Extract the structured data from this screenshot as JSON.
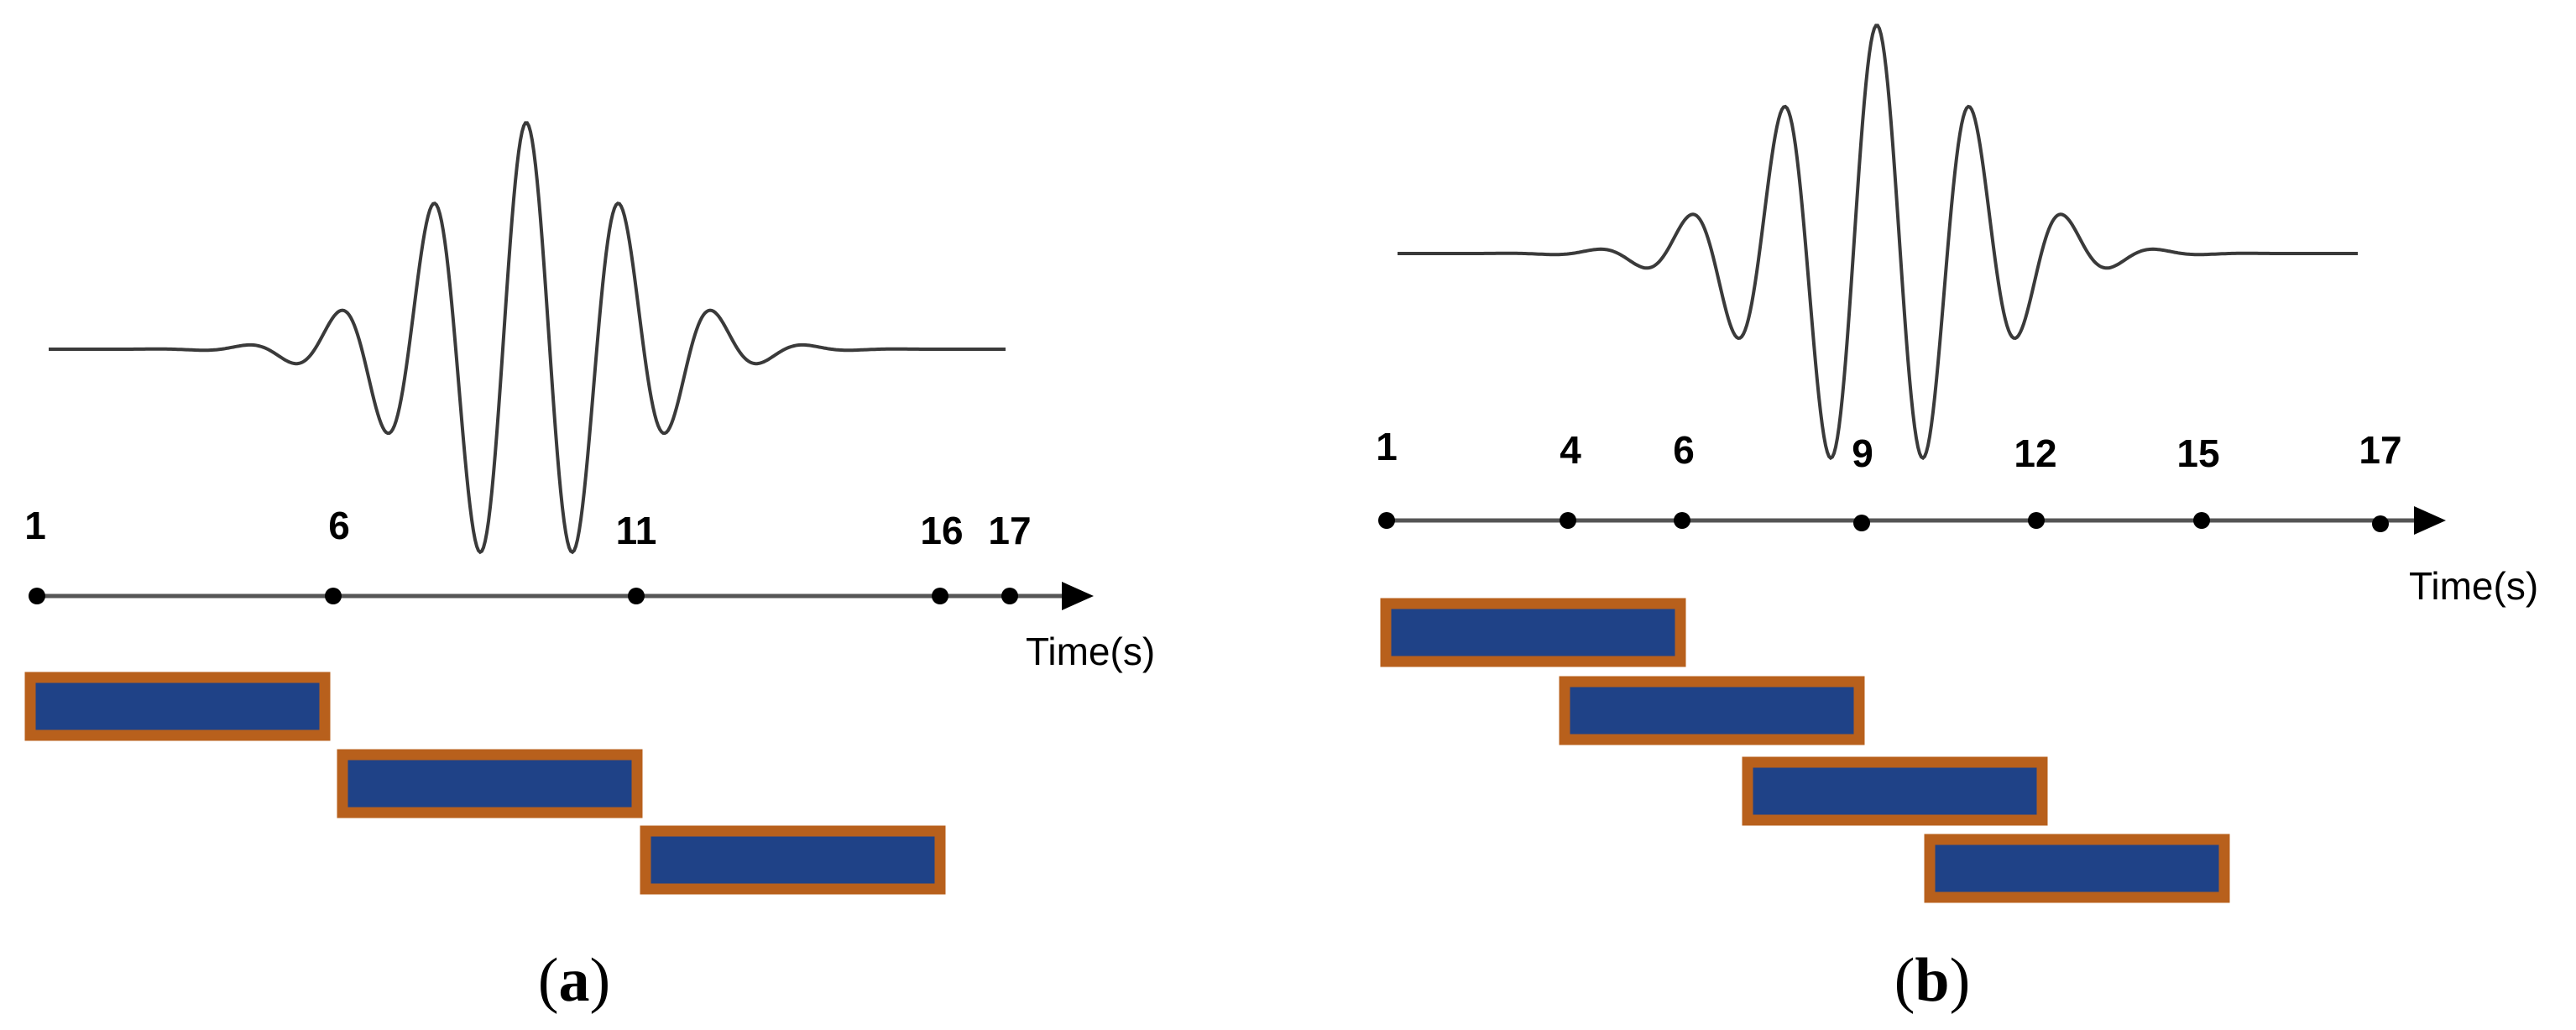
{
  "colors": {
    "window_fill": "#1f4287",
    "window_border": "#b8601c",
    "axis": "#555555",
    "signal": "#3a3a3a",
    "tick_dot": "#000000"
  },
  "panels": [
    {
      "caption_letter": "a",
      "tick_values": [
        "1",
        "6",
        "11",
        "16",
        "17"
      ],
      "axis_label": "Time(s)",
      "windows": [
        {
          "start": "1",
          "end": "6"
        },
        {
          "start": "6",
          "end": "11"
        },
        {
          "start": "11",
          "end": "16"
        }
      ]
    },
    {
      "caption_letter": "b",
      "tick_values": [
        "1",
        "4",
        "6",
        "9",
        "12",
        "15",
        "17"
      ],
      "axis_label": "Time(s)",
      "windows": [
        {
          "start": "1",
          "end": "6"
        },
        {
          "start": "4",
          "end": "9"
        },
        {
          "start": "6",
          "end": "12"
        },
        {
          "start": "9",
          "end": "15"
        }
      ]
    }
  ]
}
